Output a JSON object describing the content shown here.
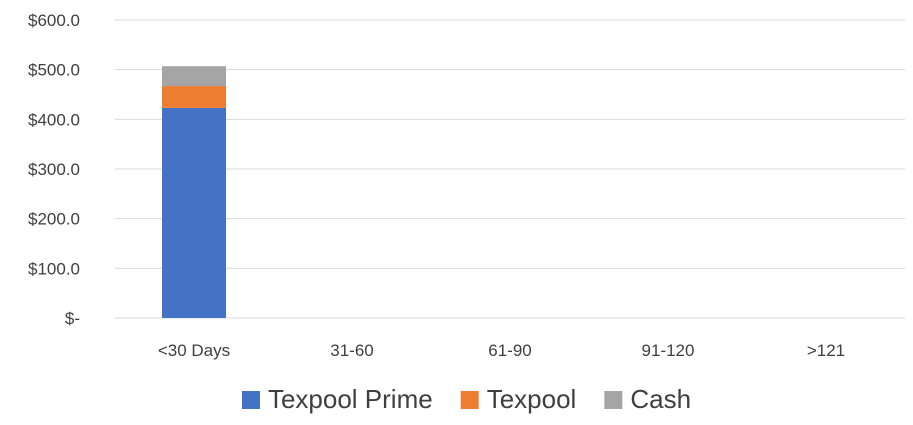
{
  "chart_data": {
    "type": "bar",
    "stacked": true,
    "categories": [
      "<30 Days",
      "31-60",
      "61-90",
      "91-120",
      ">121"
    ],
    "series": [
      {
        "name": "Texpool Prime",
        "color": "#4472c4",
        "values": [
          423,
          0,
          0,
          0,
          0
        ]
      },
      {
        "name": "Texpool",
        "color": "#ed7d31",
        "values": [
          44,
          0,
          0,
          0,
          0
        ]
      },
      {
        "name": "Cash",
        "color": "#a5a5a5",
        "values": [
          40,
          0,
          0,
          0,
          0
        ]
      }
    ],
    "ylim": [
      0,
      600
    ],
    "yticks": [
      0,
      100,
      200,
      300,
      400,
      500,
      600
    ],
    "ytick_labels": [
      "$-",
      "$100.0",
      "$200.0",
      "$300.0",
      "$400.0",
      "$500.0",
      "$600.0"
    ],
    "grid": true,
    "legend_position": "bottom"
  }
}
